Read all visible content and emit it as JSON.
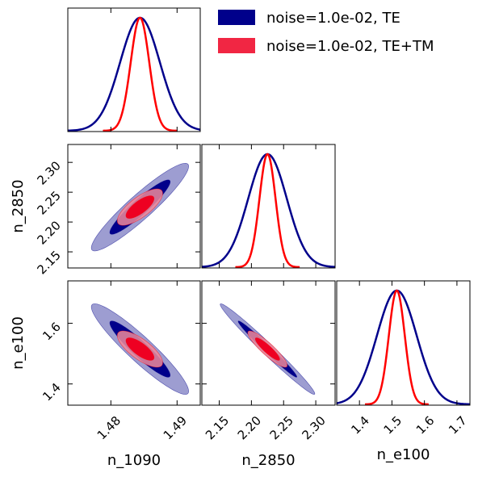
{
  "chart_data": {
    "type": "corner",
    "parameters": [
      "n_1090",
      "n_2850",
      "n_e100"
    ],
    "axis_labels": {
      "n_1090": "n_1090",
      "n_2850": "n_2850",
      "n_e100": "n_e100"
    },
    "ranges": {
      "n_1090": [
        1.4735,
        1.4935
      ],
      "n_2850": [
        2.123,
        2.33
      ],
      "n_e100": [
        1.33,
        1.74
      ]
    },
    "ticks": {
      "n_1090": [
        {
          "v": 1.48,
          "label": "1.48"
        },
        {
          "v": 1.49,
          "label": "1.49"
        }
      ],
      "n_2850": [
        {
          "v": 2.15,
          "label": "2.15"
        },
        {
          "v": 2.2,
          "label": "2.20"
        },
        {
          "v": 2.25,
          "label": "2.25"
        },
        {
          "v": 2.3,
          "label": "2.30"
        }
      ],
      "n_e100_x": [
        {
          "v": 1.4,
          "label": "1.4"
        },
        {
          "v": 1.5,
          "label": "1.5"
        },
        {
          "v": 1.6,
          "label": "1.6"
        },
        {
          "v": 1.7,
          "label": "1.7"
        }
      ],
      "n_e100_y": [
        {
          "v": 1.4,
          "label": "1.4"
        },
        {
          "v": 1.6,
          "label": "1.6"
        }
      ]
    },
    "series": [
      {
        "name": "noise=1.0e-02, TE",
        "color": "#00008b",
        "fill_inner": "#00008b",
        "fill_outer": "#8c8cc9",
        "mean": {
          "n_1090": 1.4844,
          "n_2850": 2.225,
          "n_e100": 1.515
        },
        "sigma": {
          "n_1090": 0.003,
          "n_2850": 0.03,
          "n_e100": 0.061
        },
        "correlation": {
          "n_1090|n_2850": 0.93,
          "n_1090|n_e100": -0.93,
          "n_2850|n_e100": -0.985
        }
      },
      {
        "name": "noise=1.0e-02, TE+TM",
        "color": "#ff0000",
        "fill_inner": "#ee0022",
        "fill_outer": "#f08a9a",
        "mean": {
          "n_1090": 1.4844,
          "n_2850": 2.225,
          "n_e100": 1.515
        },
        "sigma": {
          "n_1090": 0.0014,
          "n_2850": 0.0125,
          "n_e100": 0.0245
        },
        "correlation": {
          "n_1090|n_2850": 0.75,
          "n_1090|n_e100": -0.75,
          "n_2850|n_e100": -0.9
        }
      }
    ],
    "legend": {
      "position": "top-right"
    }
  }
}
